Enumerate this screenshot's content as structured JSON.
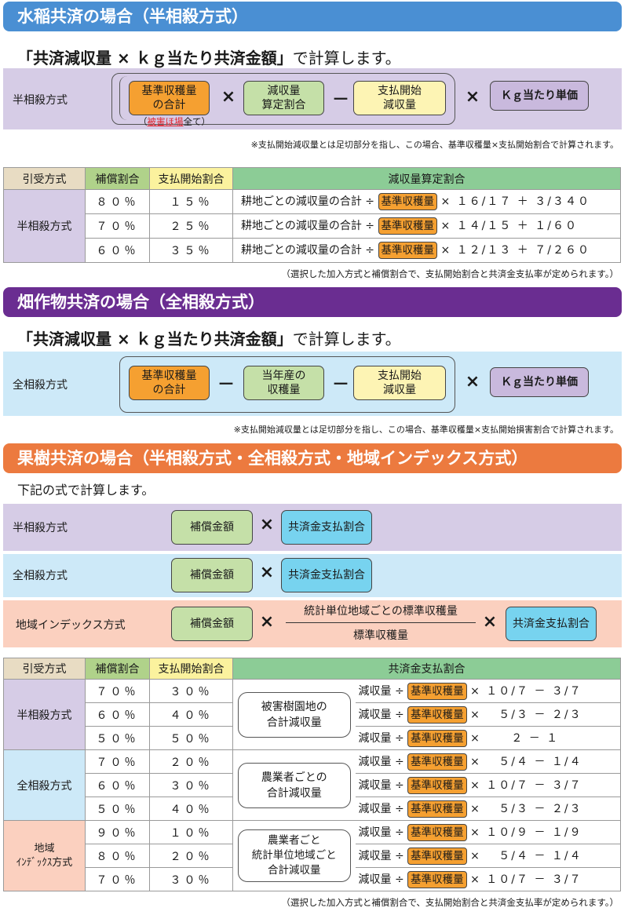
{
  "rice": {
    "header": "水稲共済の場合（半相殺方式）",
    "lead_bold": "「共済減収量 × ｋｇ当たり共済金額」",
    "lead_normal": "で計算します。",
    "method": "半相殺方式",
    "box_base": "基準収穫量\nの合計",
    "box_base_note_red": "被害ほ場",
    "box_base_note_rest": "全て）",
    "box_base_note_open": "（",
    "box_rate": "減収量\n算定割合",
    "box_start": "支払開始\n減収量",
    "box_price": "Ｋｇ当たり単価",
    "op_times": "×",
    "op_minus": "－",
    "note": "※支払開始減収量とは足切部分を指し、この場合、基準収穫量×支払開始割合で計算されます。",
    "table": {
      "headers": [
        "引受方式",
        "補償割合",
        "支払開始割合",
        "減収量算定割合"
      ],
      "method": "半相殺方式",
      "rows": [
        {
          "cover": "８０％",
          "start": "１５％",
          "pre": "耕地ごとの減収量の合計 ÷",
          "tag": "基準収穫量",
          "post": "× １６/１７ ＋ ３/３４０"
        },
        {
          "cover": "７０％",
          "start": "２５％",
          "pre": "耕地ごとの減収量の合計 ÷",
          "tag": "基準収穫量",
          "post": "× １４/１５ ＋ １/６０"
        },
        {
          "cover": "６０％",
          "start": "３５％",
          "pre": "耕地ごとの減収量の合計 ÷",
          "tag": "基準収穫量",
          "post": "× １２/１３ ＋ ７/２６０"
        }
      ],
      "footnote": "（選択した加入方式と補償割合で、支払開始割合と共済金支払率が定められます。）"
    }
  },
  "field": {
    "header": "畑作物共済の場合（全相殺方式）",
    "lead_bold": "「共済減収量 × ｋｇ当たり共済金額」",
    "lead_normal": "で計算します。",
    "method": "全相殺方式",
    "box_base": "基準収穫量\nの合計",
    "box_prod": "当年産の\n収穫量",
    "box_start": "支払開始\n減収量",
    "box_price": "Ｋｇ当たり単価",
    "op_times": "×",
    "op_minus": "－",
    "note": "※支払開始減収量とは足切部分を指し、この場合、基準収穫量×支払開始損害割合で計算されます。"
  },
  "fruit": {
    "header": "果樹共済の場合（半相殺方式・全相殺方式・地域インデックス方式）",
    "lead": "下記の式で計算します。",
    "op_times": "×",
    "bands": [
      {
        "label": "半相殺方式",
        "box1": "補償金額",
        "box2": "共済金支払割合"
      },
      {
        "label": "全相殺方式",
        "box1": "補償金額",
        "box2": "共済金支払割合"
      },
      {
        "label": "地域インデックス方式",
        "box1": "補償金額",
        "numerator": "統計単位地域ごとの標準収穫量",
        "denominator": "標準収穫量",
        "box2": "共済金支払割合"
      }
    ],
    "table": {
      "headers": [
        "引受方式",
        "補償割合",
        "支払開始割合",
        "共済金支払割合"
      ],
      "groups": [
        {
          "method": "半相殺方式",
          "desc": "被害樹園地の\n合計減収量",
          "rows": [
            {
              "cover": "７０％",
              "start": "３０％",
              "pre": "減収量 ÷",
              "tag": "基準収穫量",
              "post": "× １０/７ － ３/７"
            },
            {
              "cover": "６０％",
              "start": "４０％",
              "pre": "減収量 ÷",
              "tag": "基準収穫量",
              "post": "×　 ５/３ － ２/３"
            },
            {
              "cover": "５０％",
              "start": "５０％",
              "pre": "減収量 ÷",
              "tag": "基準収穫量",
              "post": "×　　 ２ － １"
            }
          ]
        },
        {
          "method": "全相殺方式",
          "desc": "農業者ごとの\n合計減収量",
          "rows": [
            {
              "cover": "７０％",
              "start": "２０％",
              "pre": "減収量 ÷",
              "tag": "基準収穫量",
              "post": "×　 ５/４ － １/４"
            },
            {
              "cover": "６０％",
              "start": "３０％",
              "pre": "減収量 ÷",
              "tag": "基準収穫量",
              "post": "× １０/７ － ３/７"
            },
            {
              "cover": "５０％",
              "start": "４０％",
              "pre": "減収量 ÷",
              "tag": "基準収穫量",
              "post": "×　 ５/３ － ２/３"
            }
          ]
        },
        {
          "method": "地域\nｲﾝﾃﾞｯｸｽ方式",
          "desc": "農業者ごと\n統計単位地域ごと\n合計減収量",
          "rows": [
            {
              "cover": "９０％",
              "start": "１０％",
              "pre": "減収量 ÷",
              "tag": "基準収穫量",
              "post": "× １０/９ － １/９"
            },
            {
              "cover": "８０％",
              "start": "２０％",
              "pre": "減収量 ÷",
              "tag": "基準収穫量",
              "post": "×　 ５/４ － １/４"
            },
            {
              "cover": "７０％",
              "start": "３０％",
              "pre": "減収量 ÷",
              "tag": "基準収穫量",
              "post": "× １０/７ － ３/７"
            }
          ]
        }
      ],
      "footnote": "（選択した加入方式と補償割合で、支払開始割合と共済金支払率が定められます。）"
    }
  },
  "colors": {
    "rice_header": "#4a8fd3",
    "field_header": "#6a2d91",
    "fruit_header": "#ec7a3f",
    "lavender_band": "#d6cce6",
    "blue_band": "#cde9f8",
    "salmon_band": "#fbd0bf"
  }
}
